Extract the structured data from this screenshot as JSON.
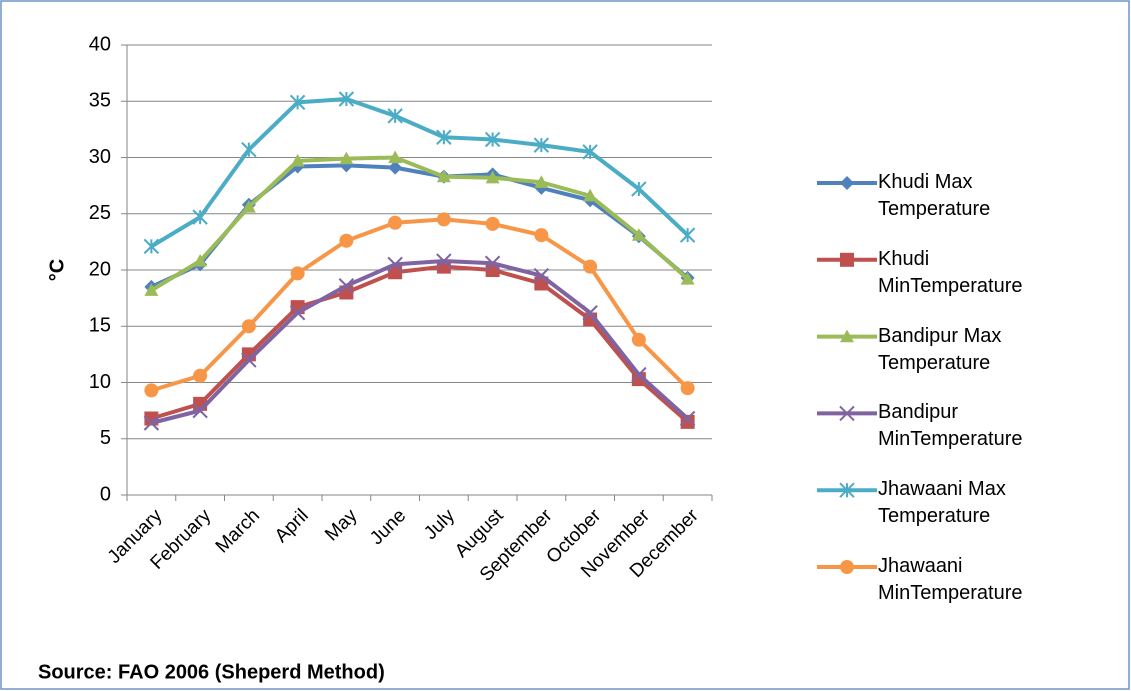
{
  "chart_data": {
    "type": "line",
    "y_label": "°C",
    "source": "Source: FAO 2006 (Sheperd Method)",
    "categories": [
      "January",
      "February",
      "March",
      "April",
      "May",
      "June",
      "July",
      "August",
      "September",
      "October",
      "November",
      "December"
    ],
    "ylim": [
      0,
      40
    ],
    "yticks": [
      0,
      5,
      10,
      15,
      20,
      25,
      30,
      35,
      40
    ],
    "grid": true,
    "legend": "right",
    "series": [
      {
        "name": "Khudi Max Temperature",
        "color": "#4f81bd",
        "marker": "diamond",
        "values": [
          18.5,
          20.5,
          25.8,
          29.2,
          29.3,
          29.1,
          28.3,
          28.5,
          27.3,
          26.2,
          23.0,
          19.3
        ]
      },
      {
        "name": "Khudi MinTemperature",
        "color": "#c0504d",
        "marker": "square",
        "values": [
          6.8,
          8.1,
          12.5,
          16.7,
          18.0,
          19.8,
          20.3,
          20.0,
          18.8,
          15.6,
          10.3,
          6.5
        ]
      },
      {
        "name": "Bandipur Max Temperature",
        "color": "#9bbb59",
        "marker": "triangle",
        "values": [
          18.2,
          20.8,
          25.6,
          29.7,
          29.9,
          30.0,
          28.3,
          28.2,
          27.8,
          26.6,
          23.1,
          19.2
        ]
      },
      {
        "name": "Bandipur MinTemperature",
        "color": "#8064a2",
        "marker": "x",
        "values": [
          6.4,
          7.5,
          12.0,
          16.2,
          18.6,
          20.5,
          20.8,
          20.6,
          19.5,
          16.2,
          10.7,
          6.8
        ]
      },
      {
        "name": "Jhawaani Max Temperature",
        "color": "#4bacc6",
        "marker": "star",
        "values": [
          22.1,
          24.7,
          30.7,
          34.9,
          35.2,
          33.7,
          31.8,
          31.6,
          31.1,
          30.5,
          27.2,
          23.1
        ]
      },
      {
        "name": "Jhawaani MinTemperature",
        "color": "#f79646",
        "marker": "circle",
        "values": [
          9.3,
          10.6,
          15.0,
          19.7,
          22.6,
          24.2,
          24.5,
          24.1,
          23.1,
          20.3,
          13.8,
          9.5
        ]
      }
    ]
  }
}
